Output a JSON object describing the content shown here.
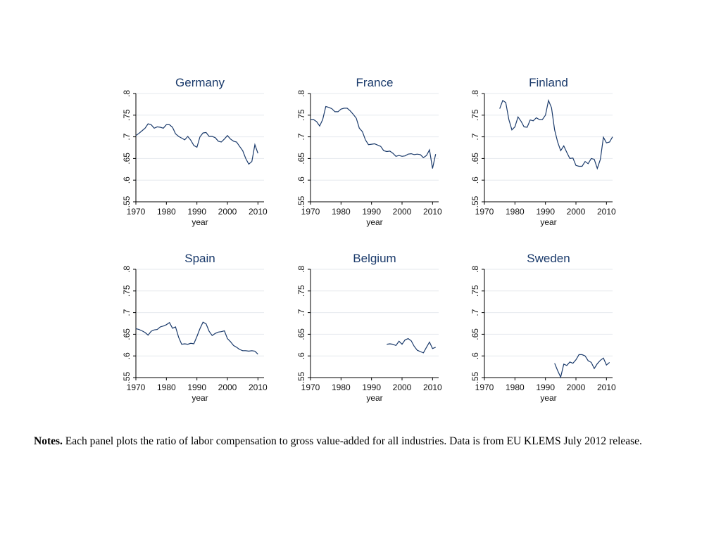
{
  "figure": {
    "notes_label": "Notes.",
    "notes_text": "Each panel plots the ratio of labor compensation to gross value-added for all industries. Data is from EU KLEMS July 2012 release."
  },
  "chart_data": [
    {
      "type": "line",
      "title": "Germany",
      "xlabel": "year",
      "ylabel": "",
      "xlim": [
        1970,
        2012
      ],
      "ylim": [
        0.55,
        0.8
      ],
      "xticks": [
        1970,
        1980,
        1990,
        2000,
        2010
      ],
      "yticks": [
        ".55",
        ".6",
        ".65",
        ".7",
        ".75",
        ".8"
      ],
      "grid": true,
      "x": [
        1970,
        1971,
        1972,
        1973,
        1974,
        1975,
        1976,
        1977,
        1978,
        1979,
        1980,
        1981,
        1982,
        1983,
        1984,
        1985,
        1986,
        1987,
        1988,
        1989,
        1990,
        1991,
        1992,
        1993,
        1994,
        1995,
        1996,
        1997,
        1998,
        1999,
        2000,
        2001,
        2002,
        2003,
        2004,
        2005,
        2006,
        2007,
        2008,
        2009,
        2010
      ],
      "values": [
        0.703,
        0.708,
        0.714,
        0.72,
        0.73,
        0.728,
        0.72,
        0.723,
        0.722,
        0.72,
        0.728,
        0.728,
        0.722,
        0.707,
        0.701,
        0.697,
        0.693,
        0.701,
        0.692,
        0.68,
        0.676,
        0.7,
        0.709,
        0.71,
        0.701,
        0.701,
        0.698,
        0.69,
        0.688,
        0.695,
        0.703,
        0.695,
        0.69,
        0.688,
        0.678,
        0.668,
        0.65,
        0.637,
        0.643,
        0.682,
        0.662
      ]
    },
    {
      "type": "line",
      "title": "France",
      "xlabel": "year",
      "ylabel": "",
      "xlim": [
        1970,
        2012
      ],
      "ylim": [
        0.55,
        0.8
      ],
      "xticks": [
        1970,
        1980,
        1990,
        2000,
        2010
      ],
      "yticks": [
        ".55",
        ".6",
        ".65",
        ".7",
        ".75",
        ".8"
      ],
      "grid": true,
      "x": [
        1970,
        1971,
        1972,
        1973,
        1974,
        1975,
        1976,
        1977,
        1978,
        1979,
        1980,
        1981,
        1982,
        1983,
        1984,
        1985,
        1986,
        1987,
        1988,
        1989,
        1990,
        1991,
        1992,
        1993,
        1994,
        1995,
        1996,
        1997,
        1998,
        1999,
        2000,
        2001,
        2002,
        2003,
        2004,
        2005,
        2006,
        2007,
        2008,
        2009,
        2010,
        2011
      ],
      "values": [
        0.74,
        0.74,
        0.735,
        0.725,
        0.74,
        0.77,
        0.768,
        0.765,
        0.758,
        0.758,
        0.764,
        0.766,
        0.766,
        0.76,
        0.752,
        0.743,
        0.72,
        0.712,
        0.693,
        0.682,
        0.683,
        0.684,
        0.681,
        0.678,
        0.668,
        0.666,
        0.667,
        0.662,
        0.655,
        0.657,
        0.655,
        0.656,
        0.66,
        0.661,
        0.659,
        0.66,
        0.659,
        0.652,
        0.657,
        0.67,
        0.627,
        0.66
      ]
    },
    {
      "type": "line",
      "title": "Finland",
      "xlabel": "year",
      "ylabel": "",
      "xlim": [
        1970,
        2012
      ],
      "ylim": [
        0.55,
        0.8
      ],
      "xticks": [
        1970,
        1980,
        1990,
        2000,
        2010
      ],
      "yticks": [
        ".55",
        ".6",
        ".65",
        ".7",
        ".75",
        ".8"
      ],
      "grid": true,
      "x": [
        1975,
        1976,
        1977,
        1978,
        1979,
        1980,
        1981,
        1982,
        1983,
        1984,
        1985,
        1986,
        1987,
        1988,
        1989,
        1990,
        1991,
        1992,
        1993,
        1994,
        1995,
        1996,
        1997,
        1998,
        1999,
        2000,
        2001,
        2002,
        2003,
        2004,
        2005,
        2006,
        2007,
        2008,
        2009,
        2010,
        2011,
        2012
      ],
      "values": [
        0.765,
        0.784,
        0.779,
        0.74,
        0.716,
        0.723,
        0.746,
        0.736,
        0.723,
        0.722,
        0.739,
        0.737,
        0.744,
        0.74,
        0.74,
        0.75,
        0.784,
        0.767,
        0.716,
        0.688,
        0.668,
        0.679,
        0.664,
        0.65,
        0.651,
        0.634,
        0.632,
        0.632,
        0.643,
        0.638,
        0.65,
        0.648,
        0.627,
        0.648,
        0.699,
        0.686,
        0.688,
        0.7
      ]
    },
    {
      "type": "line",
      "title": "Spain",
      "xlabel": "year",
      "ylabel": "",
      "xlim": [
        1970,
        2012
      ],
      "ylim": [
        0.55,
        0.8
      ],
      "xticks": [
        1970,
        1980,
        1990,
        2000,
        2010
      ],
      "yticks": [
        ".55",
        ".6",
        ".65",
        ".7",
        ".75",
        ".8"
      ],
      "grid": true,
      "x": [
        1970,
        1971,
        1972,
        1973,
        1974,
        1975,
        1976,
        1977,
        1978,
        1979,
        1980,
        1981,
        1982,
        1983,
        1984,
        1985,
        1986,
        1987,
        1988,
        1989,
        1990,
        1991,
        1992,
        1993,
        1994,
        1995,
        1996,
        1997,
        1998,
        1999,
        2000,
        2001,
        2002,
        2003,
        2004,
        2005,
        2006,
        2007,
        2008,
        2009,
        2010
      ],
      "values": [
        0.663,
        0.661,
        0.658,
        0.654,
        0.648,
        0.657,
        0.66,
        0.661,
        0.667,
        0.669,
        0.672,
        0.677,
        0.664,
        0.667,
        0.643,
        0.627,
        0.628,
        0.627,
        0.629,
        0.628,
        0.645,
        0.663,
        0.678,
        0.674,
        0.657,
        0.647,
        0.652,
        0.655,
        0.656,
        0.658,
        0.64,
        0.633,
        0.624,
        0.62,
        0.615,
        0.612,
        0.612,
        0.611,
        0.612,
        0.611,
        0.604
      ]
    },
    {
      "type": "line",
      "title": "Belgium",
      "xlabel": "year",
      "ylabel": "",
      "xlim": [
        1970,
        2012
      ],
      "ylim": [
        0.55,
        0.8
      ],
      "xticks": [
        1970,
        1980,
        1990,
        2000,
        2010
      ],
      "yticks": [
        ".55",
        ".6",
        ".65",
        ".7",
        ".75",
        ".8"
      ],
      "grid": true,
      "x": [
        1995,
        1996,
        1997,
        1998,
        1999,
        2000,
        2001,
        2002,
        2003,
        2004,
        2005,
        2006,
        2007,
        2008,
        2009,
        2010,
        2011
      ],
      "values": [
        0.627,
        0.628,
        0.627,
        0.624,
        0.634,
        0.627,
        0.637,
        0.64,
        0.635,
        0.622,
        0.613,
        0.61,
        0.607,
        0.62,
        0.632,
        0.617,
        0.62
      ]
    },
    {
      "type": "line",
      "title": "Sweden",
      "xlabel": "year",
      "ylabel": "",
      "xlim": [
        1970,
        2012
      ],
      "ylim": [
        0.55,
        0.8
      ],
      "xticks": [
        1970,
        1980,
        1990,
        2000,
        2010
      ],
      "yticks": [
        ".55",
        ".6",
        ".65",
        ".7",
        ".75",
        ".8"
      ],
      "grid": true,
      "x": [
        1993,
        1994,
        1995,
        1996,
        1997,
        1998,
        1999,
        2000,
        2001,
        2002,
        2003,
        2004,
        2005,
        2006,
        2007,
        2008,
        2009,
        2010,
        2011
      ],
      "values": [
        0.583,
        0.566,
        0.551,
        0.581,
        0.578,
        0.586,
        0.583,
        0.591,
        0.603,
        0.603,
        0.6,
        0.589,
        0.585,
        0.571,
        0.582,
        0.59,
        0.595,
        0.579,
        0.585
      ]
    }
  ]
}
